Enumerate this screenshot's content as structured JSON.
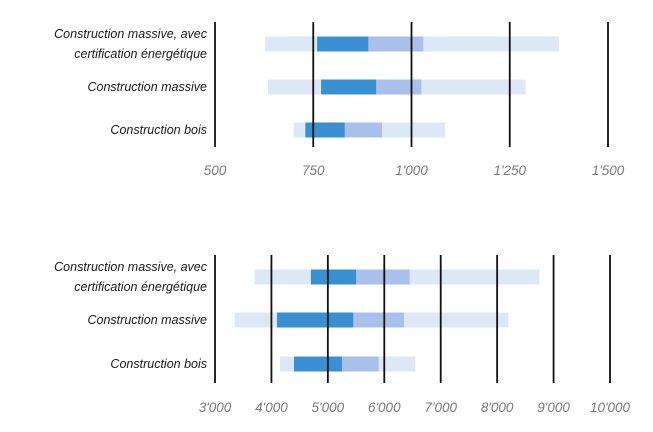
{
  "colors": {
    "outer": "#dde8f7",
    "inner": "#a8c0ea",
    "core": "#3a8fd1",
    "grid": "#111111"
  },
  "chart_data": [
    {
      "type": "bar",
      "subtype": "range-bands",
      "xlim": [
        500,
        1500
      ],
      "ticks": [
        500,
        750,
        1000,
        1250,
        1500
      ],
      "tick_labels": [
        "500",
        "750",
        "1'000",
        "1'250",
        "1'500"
      ],
      "categories": [
        [
          "Construction massive, avec",
          "certification énergétique"
        ],
        [
          "Construction massive"
        ],
        [
          "Construction bois"
        ]
      ],
      "series": [
        {
          "outer": [
            628,
            1375
          ],
          "inner": [
            760,
            1030
          ],
          "core": [
            760,
            890
          ]
        },
        {
          "outer": [
            635,
            1290
          ],
          "inner": [
            770,
            1025
          ],
          "core": [
            770,
            910
          ]
        },
        {
          "outer": [
            700,
            1085
          ],
          "inner": [
            730,
            925
          ],
          "core": [
            730,
            830
          ]
        }
      ]
    },
    {
      "type": "bar",
      "subtype": "range-bands",
      "xlim": [
        3000,
        10000
      ],
      "ticks": [
        3000,
        4000,
        5000,
        6000,
        7000,
        8000,
        9000,
        10000
      ],
      "tick_labels": [
        "3'000",
        "4'000",
        "5'000",
        "6'000",
        "7'000",
        "8'000",
        "9'000",
        "10'000"
      ],
      "categories": [
        [
          "Construction massive, avec",
          "certification énergétique"
        ],
        [
          "Construction massive"
        ],
        [
          "Construction bois"
        ]
      ],
      "series": [
        {
          "outer": [
            3700,
            8750
          ],
          "inner": [
            4700,
            6450
          ],
          "core": [
            4700,
            5500
          ]
        },
        {
          "outer": [
            3350,
            8200
          ],
          "inner": [
            4100,
            6350
          ],
          "core": [
            4100,
            5450
          ]
        },
        {
          "outer": [
            4150,
            6550
          ],
          "inner": [
            4400,
            5900
          ],
          "core": [
            4400,
            5250
          ]
        }
      ]
    }
  ]
}
